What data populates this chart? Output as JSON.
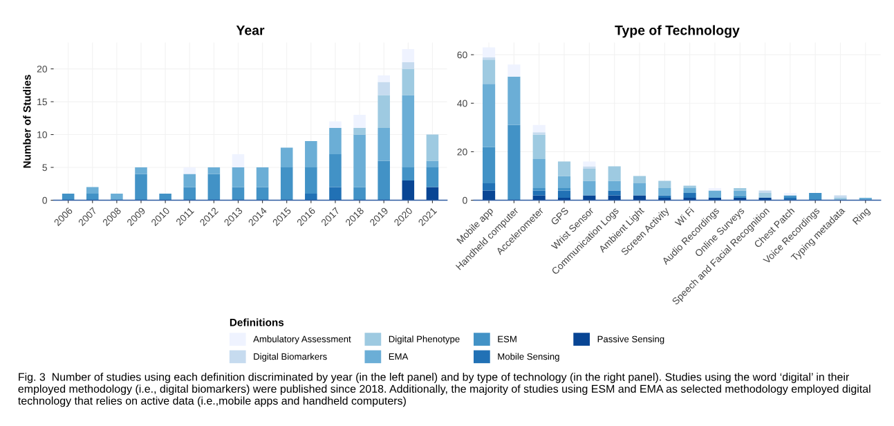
{
  "chart_data": [
    {
      "type": "bar",
      "stacked": true,
      "title": "Year",
      "ylabel": "Number of Studies",
      "legend": "bottom",
      "legend_title": "Definitions",
      "grid": true,
      "categories": [
        "2006",
        "2007",
        "2008",
        "2009",
        "2010",
        "2011",
        "2012",
        "2013",
        "2014",
        "2015",
        "2016",
        "2017",
        "2018",
        "2019",
        "2020",
        "2021"
      ],
      "ylim": [
        0,
        24
      ],
      "yticks": [
        0,
        5,
        10,
        15,
        20
      ],
      "series": [
        {
          "name": "Passive Sensing",
          "color": "#084594",
          "values": [
            0,
            0,
            0,
            0,
            0,
            0,
            0,
            0,
            0,
            0,
            0,
            0,
            0,
            0,
            3,
            2
          ]
        },
        {
          "name": "Mobile Sensing",
          "color": "#2171b5",
          "values": [
            0,
            0,
            0,
            0,
            0,
            0,
            0,
            0,
            0,
            0,
            1,
            2,
            0,
            0,
            0,
            0
          ]
        },
        {
          "name": "ESM",
          "color": "#4292c6",
          "values": [
            1,
            1,
            0,
            4,
            1,
            2,
            4,
            2,
            2,
            5,
            4,
            5,
            2,
            6,
            2,
            3
          ]
        },
        {
          "name": "EMA",
          "color": "#6baed6",
          "values": [
            0,
            1,
            1,
            1,
            0,
            2,
            1,
            3,
            3,
            3,
            4,
            4,
            8,
            5,
            11,
            1
          ]
        },
        {
          "name": "Digital Phenotype",
          "color": "#9ecae1",
          "values": [
            0,
            0,
            0,
            0,
            0,
            0,
            0,
            0,
            0,
            0,
            0,
            0,
            1,
            5,
            4,
            4
          ]
        },
        {
          "name": "Digital Biomarkers",
          "color": "#c6dbef",
          "values": [
            0,
            0,
            0,
            0,
            0,
            0,
            0,
            0,
            0,
            0,
            0,
            0,
            0,
            2,
            1,
            0
          ]
        },
        {
          "name": "Ambulatory Assessment",
          "color": "#eff3ff",
          "values": [
            0,
            0,
            0,
            0,
            0,
            1,
            0,
            2,
            0,
            0,
            0,
            1,
            2,
            1,
            2,
            0
          ]
        }
      ],
      "annotations": [
        "Fig. 3  Number of studies using each definition discriminated by year (in the left panel) and by type of technology (in the right panel). Studies using the word ‘digital’ in their employed methodology (i.e., digital biomarkers) were published since 2018. Additionally, the majority of studies using ESM and EMA as selected methodology employed digital technology that relies on active data (i.e.,mobile apps and handheld computers)"
      ]
    },
    {
      "type": "bar",
      "stacked": true,
      "title": "Type of Technology",
      "grid": true,
      "categories": [
        "Mobile app",
        "Handheld computer",
        "Accelerometer",
        "GPS",
        "Wrist Sensor",
        "Communication Logs",
        "Ambient Light",
        "Screen Activity",
        "Wi Fi",
        "Audio Recordings",
        "Online Surveys",
        "Speech and Facial Recognition",
        "Chest Patch",
        "Voice Recordings",
        "Typing metadata",
        "Ring"
      ],
      "ylim": [
        0,
        65
      ],
      "yticks": [
        0,
        20,
        40,
        60
      ],
      "series": [
        {
          "color": "#084594",
          "values": [
            4,
            0,
            2,
            1,
            2,
            2,
            2,
            1,
            1,
            1,
            1,
            1,
            0,
            0,
            0,
            0
          ]
        },
        {
          "color": "#2171b5",
          "values": [
            3,
            0,
            2,
            3,
            0,
            2,
            0,
            1,
            2,
            0,
            0,
            0,
            1,
            0,
            0,
            0
          ]
        },
        {
          "color": "#4292c6",
          "values": [
            15,
            31,
            1,
            1,
            0,
            0,
            0,
            0,
            0,
            0,
            1,
            0,
            1,
            3,
            0,
            0
          ]
        },
        {
          "color": "#6baed6",
          "values": [
            26,
            20,
            12,
            5,
            6,
            4,
            5,
            3,
            2,
            3,
            2,
            0,
            0,
            0,
            0,
            1
          ]
        },
        {
          "color": "#9ecae1",
          "values": [
            10,
            0,
            10,
            6,
            5,
            6,
            3,
            3,
            1,
            0,
            1,
            2,
            0,
            0,
            1,
            0
          ]
        },
        {
          "color": "#c6dbef",
          "values": [
            1,
            0,
            1,
            0,
            1,
            0,
            0,
            0,
            0,
            0,
            0,
            1,
            0,
            0,
            1,
            0
          ]
        },
        {
          "color": "#eff3ff",
          "values": [
            4,
            5,
            3,
            0,
            2,
            0,
            0,
            0,
            0,
            1,
            0,
            0,
            1,
            0,
            0,
            0
          ]
        }
      ]
    }
  ]
}
